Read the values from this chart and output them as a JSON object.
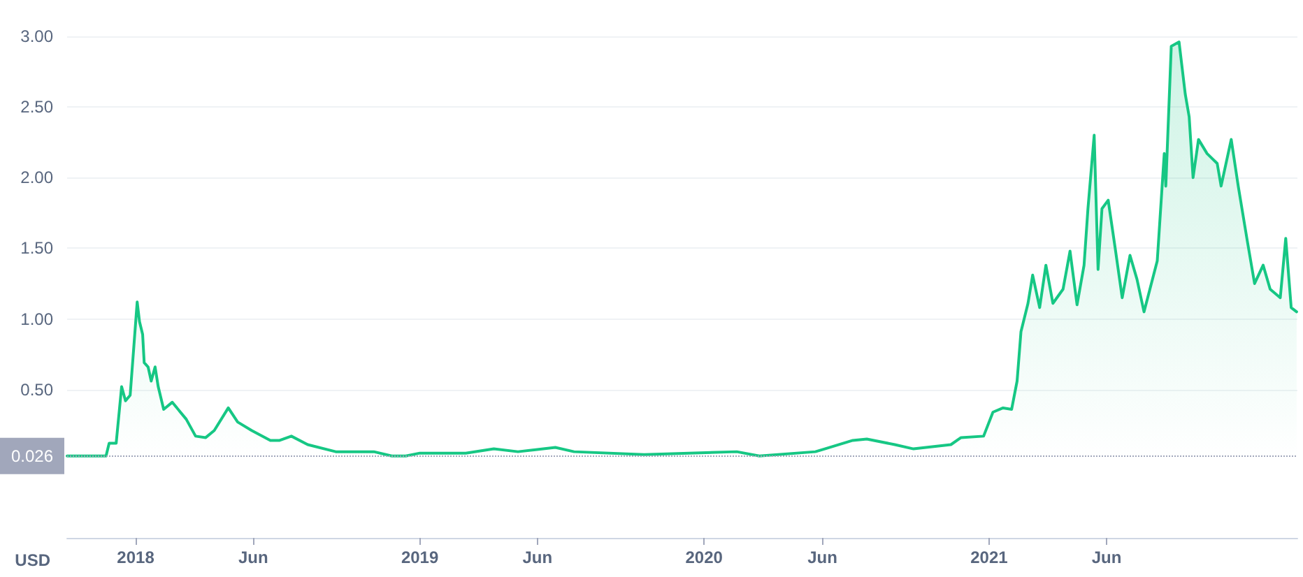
{
  "chart_data": {
    "type": "area",
    "ylabel": "USD",
    "xlim": [
      "2017-10-05",
      "2022-02-01"
    ],
    "xticks": [
      {
        "value": "2018-01-01",
        "label": "2018"
      },
      {
        "value": "2018-06-01",
        "label": "Jun"
      },
      {
        "value": "2019-01-01",
        "label": "2019"
      },
      {
        "value": "2019-06-01",
        "label": "Jun"
      },
      {
        "value": "2020-01-01",
        "label": "2020"
      },
      {
        "value": "2020-06-01",
        "label": "Jun"
      },
      {
        "value": "2021-01-01",
        "label": "2021"
      },
      {
        "value": "2021-06-01",
        "label": "Jun"
      }
    ],
    "ylim": [
      -0.55,
      3
    ],
    "yticks": [
      {
        "value": 0.5,
        "label": "0.50"
      },
      {
        "value": 1,
        "label": "1.00"
      },
      {
        "value": 1.5,
        "label": "1.50"
      },
      {
        "value": 2,
        "label": "2.00"
      },
      {
        "value": 2.5,
        "label": "2.50"
      },
      {
        "value": 3,
        "label": "3.00"
      }
    ],
    "grid": "y",
    "marker": "none",
    "line_style": "solid",
    "ref_lines": [
      {
        "axis": "y",
        "value": 0.026,
        "label": "0.026",
        "color": "#a1a7bb",
        "line_style": "dotted"
      }
    ],
    "series": [
      {
        "color": "#16c784",
        "x": [
          "2017-10-05",
          "2017-11-24",
          "2017-11-28",
          "2017-12-07",
          "2017-12-14",
          "2017-12-19",
          "2017-12-25",
          "2018-01-03",
          "2018-01-06",
          "2018-01-10",
          "2018-01-12",
          "2018-01-17",
          "2018-01-21",
          "2018-01-26",
          "2018-01-30",
          "2018-02-06",
          "2018-02-17",
          "2018-03-07",
          "2018-03-19",
          "2018-04-01",
          "2018-04-12",
          "2018-04-30",
          "2018-05-12",
          "2018-05-30",
          "2018-06-23",
          "2018-07-05",
          "2018-07-20",
          "2018-08-10",
          "2018-09-15",
          "2018-11-03",
          "2018-11-26",
          "2018-12-14",
          "2019-01-01",
          "2019-03-01",
          "2019-04-06",
          "2019-05-07",
          "2019-06-24",
          "2019-07-18",
          "2019-10-16",
          "2020-02-12",
          "2020-03-12",
          "2020-05-23",
          "2020-06-04",
          "2020-07-10",
          "2020-07-28",
          "2020-09-02",
          "2020-09-26",
          "2020-11-13",
          "2020-11-26",
          "2020-12-25",
          "2021-01-06",
          "2021-01-19",
          "2021-01-30",
          "2021-02-06",
          "2021-02-11",
          "2021-02-20",
          "2021-02-26",
          "2021-03-07",
          "2021-03-15",
          "2021-03-24",
          "2021-04-06",
          "2021-04-15",
          "2021-04-24",
          "2021-05-03",
          "2021-05-08",
          "2021-05-16",
          "2021-05-21",
          "2021-05-26",
          "2021-06-03",
          "2021-06-12",
          "2021-06-21",
          "2021-07-01",
          "2021-07-10",
          "2021-07-19",
          "2021-08-05",
          "2021-08-14",
          "2021-08-16",
          "2021-08-23",
          "2021-09-02",
          "2021-09-10",
          "2021-09-15",
          "2021-09-20",
          "2021-09-27",
          "2021-10-08",
          "2021-10-21",
          "2021-10-26",
          "2021-11-08",
          "2021-11-17",
          "2021-11-29",
          "2021-12-08",
          "2021-12-19",
          "2021-12-28",
          "2022-01-10",
          "2022-01-17",
          "2022-01-24",
          "2022-01-31"
        ],
        "values": [
          0.03,
          0.03,
          0.12,
          0.12,
          0.52,
          0.42,
          0.46,
          1.12,
          0.98,
          0.89,
          0.69,
          0.66,
          0.56,
          0.66,
          0.52,
          0.36,
          0.41,
          0.29,
          0.17,
          0.16,
          0.21,
          0.37,
          0.27,
          0.21,
          0.14,
          0.14,
          0.17,
          0.11,
          0.06,
          0.06,
          0.03,
          0.03,
          0.05,
          0.05,
          0.08,
          0.06,
          0.09,
          0.06,
          0.04,
          0.06,
          0.03,
          0.06,
          0.08,
          0.14,
          0.15,
          0.11,
          0.08,
          0.11,
          0.16,
          0.17,
          0.34,
          0.37,
          0.36,
          0.56,
          0.91,
          1.11,
          1.31,
          1.08,
          1.38,
          1.11,
          1.21,
          1.48,
          1.1,
          1.38,
          1.78,
          2.3,
          1.35,
          1.78,
          1.84,
          1.5,
          1.15,
          1.45,
          1.28,
          1.05,
          1.41,
          2.17,
          1.94,
          2.93,
          2.96,
          2.59,
          2.43,
          2.0,
          2.27,
          2.17,
          2.1,
          1.94,
          2.27,
          1.94,
          1.54,
          1.25,
          1.38,
          1.21,
          1.15,
          1.57,
          1.08,
          1.05
        ]
      }
    ]
  }
}
